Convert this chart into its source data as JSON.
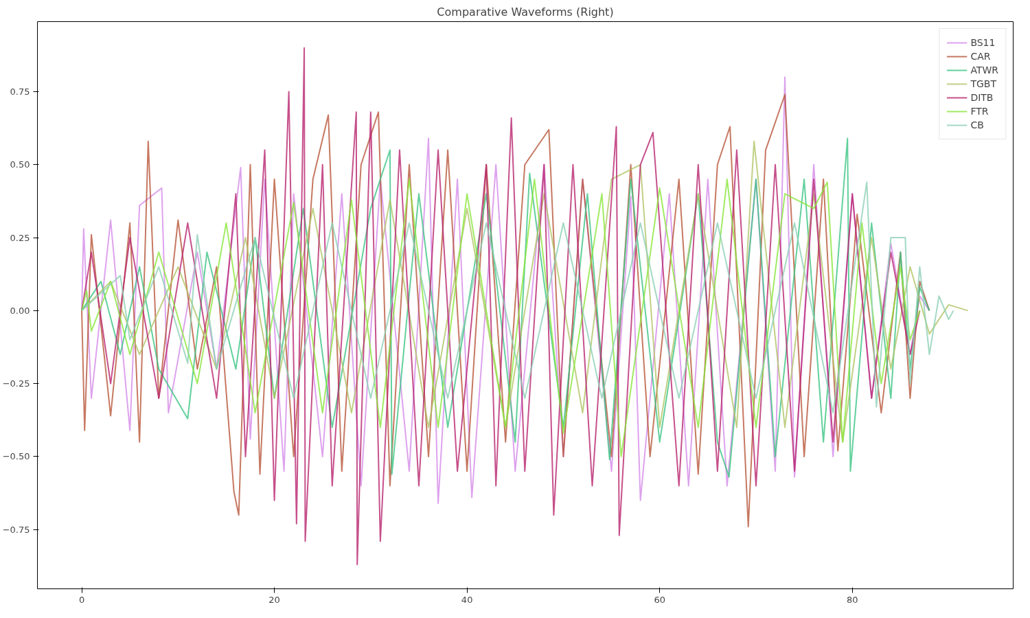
{
  "chart_data": {
    "type": "line",
    "title": "Comparative Waveforms (Right)",
    "xlim": [
      -4.6,
      96.7
    ],
    "ylim": [
      -0.953,
      0.99
    ],
    "xticks": [
      0,
      20,
      40,
      60,
      80
    ],
    "yticks": [
      {
        "value": -0.75,
        "label": "−0.75"
      },
      {
        "value": -0.5,
        "label": "−0.50"
      },
      {
        "value": -0.25,
        "label": "−0.25"
      },
      {
        "value": 0,
        "label": "0.00"
      },
      {
        "value": 0.25,
        "label": "0.25"
      },
      {
        "value": 0.5,
        "label": "0.50"
      },
      {
        "value": 0.75,
        "label": "0.75"
      }
    ],
    "grid": false,
    "legend": "top right",
    "line_style": "solid",
    "series": [
      {
        "name": "BS11",
        "color": "#d58be8",
        "x": [
          0,
          0.2,
          1,
          3,
          5,
          6,
          8.3,
          9,
          12,
          14,
          16.5,
          17.5,
          19,
          21,
          22,
          25,
          27,
          29,
          31,
          34,
          36,
          37,
          39,
          40.5,
          43,
          45,
          48,
          50,
          52,
          55,
          57,
          58,
          61,
          63,
          65,
          67,
          70,
          72,
          73,
          74,
          76,
          78,
          80,
          82,
          84,
          86,
          87,
          88
        ],
        "values": [
          0,
          0.28,
          -0.3,
          0.31,
          -0.41,
          0.36,
          0.42,
          -0.35,
          0.2,
          -0.2,
          0.49,
          -0.44,
          0.45,
          -0.55,
          0.4,
          -0.5,
          0.4,
          -0.6,
          0.45,
          -0.55,
          0.59,
          -0.66,
          0.45,
          -0.64,
          0.5,
          -0.55,
          0.5,
          -0.5,
          0.45,
          -0.55,
          0.39,
          -0.65,
          0.4,
          -0.6,
          0.45,
          -0.6,
          0.45,
          -0.55,
          0.8,
          -0.57,
          0.5,
          -0.5,
          0.4,
          -0.3,
          0.23,
          -0.15,
          0.05,
          0
        ]
      },
      {
        "name": "CAR",
        "color": "#b8563a",
        "x": [
          0,
          0.3,
          1,
          3,
          5,
          6,
          6.9,
          8,
          10,
          12,
          14,
          15.8,
          16.3,
          17.5,
          18.5,
          20,
          22,
          24,
          25.6,
          27,
          29,
          30.8,
          32,
          34,
          36,
          38,
          40,
          42,
          44,
          46,
          48.5,
          50,
          52,
          55,
          57,
          59,
          62,
          64,
          66,
          67.3,
          69.2,
          71,
          73,
          75,
          77,
          78.5,
          80.5,
          83,
          85,
          86,
          87,
          88
        ],
        "values": [
          0,
          -0.41,
          0.26,
          -0.36,
          0.3,
          -0.45,
          0.58,
          -0.3,
          0.31,
          -0.2,
          0.15,
          -0.62,
          -0.7,
          0.5,
          -0.56,
          0.45,
          -0.5,
          0.45,
          0.67,
          -0.55,
          0.5,
          0.68,
          -0.6,
          0.5,
          -0.5,
          0.55,
          -0.55,
          0.5,
          -0.45,
          0.5,
          0.62,
          -0.5,
          0.45,
          -0.5,
          0.5,
          -0.5,
          0.45,
          -0.56,
          0.5,
          0.63,
          -0.74,
          0.55,
          0.74,
          -0.5,
          0.45,
          -0.48,
          0.33,
          -0.35,
          0.2,
          -0.3,
          0.1,
          0
        ]
      },
      {
        "name": "ATWR",
        "color": "#3cc483",
        "x": [
          0,
          2,
          4,
          6,
          8,
          11,
          13,
          16,
          18,
          20,
          23,
          26,
          30,
          32,
          32.2,
          35,
          38,
          42,
          45,
          46.5,
          50,
          52.5,
          54.8,
          57,
          60,
          64,
          66,
          67.2,
          70,
          72,
          75,
          77,
          79.5,
          79.8,
          82,
          84,
          85,
          86,
          87,
          88
        ],
        "values": [
          0,
          0.1,
          -0.15,
          0.15,
          -0.2,
          -0.37,
          0.2,
          -0.2,
          0.25,
          -0.3,
          0.35,
          -0.4,
          0.35,
          0.55,
          -0.56,
          0.4,
          -0.4,
          0.4,
          -0.45,
          0.47,
          -0.4,
          0.4,
          -0.51,
          0.45,
          -0.45,
          0.4,
          -0.45,
          -0.57,
          0.45,
          -0.5,
          0.45,
          -0.45,
          0.59,
          -0.55,
          0.3,
          -0.3,
          0.2,
          -0.2,
          0.08,
          0
        ]
      },
      {
        "name": "TGBT",
        "color": "#b0c466",
        "x": [
          0,
          3,
          6,
          10,
          14,
          17,
          20,
          24,
          28,
          32,
          36,
          40,
          44,
          48,
          52,
          55,
          58,
          60,
          64,
          68,
          69.8,
          73,
          76,
          79,
          82,
          84,
          86,
          88,
          90,
          92
        ],
        "values": [
          0,
          0.1,
          -0.15,
          0.15,
          -0.2,
          0.25,
          -0.3,
          0.35,
          -0.35,
          0.38,
          -0.4,
          0.35,
          -0.4,
          0.4,
          -0.35,
          0.45,
          0.5,
          -0.4,
          0.4,
          -0.4,
          0.58,
          -0.4,
          0.4,
          -0.45,
          0.25,
          -0.2,
          0.15,
          -0.08,
          0.02,
          0
        ]
      },
      {
        "name": "DITB",
        "color": "#b8246e",
        "x": [
          0,
          1,
          3,
          5,
          8,
          11,
          14,
          16,
          17,
          19,
          20,
          21.5,
          22.3,
          23.1,
          23.2,
          25,
          26,
          28.5,
          28.6,
          30,
          31,
          33,
          35,
          37,
          39,
          42,
          43,
          44.6,
          46,
          48,
          49,
          51,
          53,
          55.5,
          55.8,
          58,
          59.3,
          62,
          64,
          66,
          68,
          70,
          72,
          74,
          76,
          78,
          80,
          82,
          84,
          86,
          87
        ],
        "values": [
          0,
          0.2,
          -0.25,
          0.25,
          -0.3,
          0.3,
          -0.3,
          0.4,
          -0.5,
          0.55,
          -0.65,
          0.75,
          -0.73,
          0.9,
          -0.79,
          0.5,
          -0.6,
          0.68,
          -0.87,
          0.68,
          -0.79,
          0.55,
          -0.6,
          0.55,
          -0.55,
          0.5,
          -0.6,
          0.66,
          -0.55,
          0.5,
          -0.7,
          0.5,
          -0.6,
          0.63,
          -0.77,
          0.5,
          0.61,
          -0.6,
          0.5,
          -0.55,
          0.55,
          -0.6,
          0.5,
          -0.55,
          0.45,
          -0.45,
          0.4,
          -0.3,
          0.2,
          -0.15,
          0
        ]
      },
      {
        "name": "FTR",
        "color": "#8ae63c",
        "x": [
          0,
          0.5,
          1,
          3,
          5,
          8,
          12,
          15,
          18,
          22,
          25,
          28,
          31,
          34,
          37,
          40,
          44,
          47,
          50,
          54,
          56,
          60,
          64,
          67,
          70,
          73,
          76,
          77.4,
          79,
          81,
          83,
          85,
          86,
          87
        ],
        "values": [
          0,
          0.07,
          -0.07,
          0.1,
          -0.15,
          0.2,
          -0.25,
          0.3,
          -0.35,
          0.37,
          -0.35,
          0.38,
          -0.4,
          0.45,
          -0.4,
          0.4,
          -0.4,
          0.45,
          -0.42,
          0.4,
          -0.5,
          0.42,
          -0.4,
          0.45,
          -0.4,
          0.4,
          0.35,
          0.44,
          -0.45,
          0.3,
          -0.25,
          0.15,
          -0.1,
          0
        ]
      },
      {
        "name": "CB",
        "color": "#8ccfb5",
        "x": [
          0,
          4,
          5,
          8,
          11,
          12,
          14,
          18,
          22,
          26,
          30,
          34,
          38,
          42,
          46,
          50,
          54,
          58,
          62,
          66,
          70,
          74,
          78,
          81.5,
          82.5,
          84,
          85.5,
          86,
          87,
          88,
          89,
          90,
          90.5
        ],
        "values": [
          0,
          0.12,
          -0.1,
          0.15,
          -0.18,
          0.26,
          -0.2,
          0.25,
          -0.3,
          0.3,
          -0.3,
          0.3,
          -0.3,
          0.3,
          -0.3,
          0.3,
          -0.3,
          0.3,
          -0.3,
          0.3,
          -0.3,
          0.3,
          -0.35,
          0.44,
          -0.33,
          0.25,
          0.25,
          -0.25,
          0.15,
          -0.15,
          0.05,
          -0.03,
          0
        ]
      }
    ]
  }
}
